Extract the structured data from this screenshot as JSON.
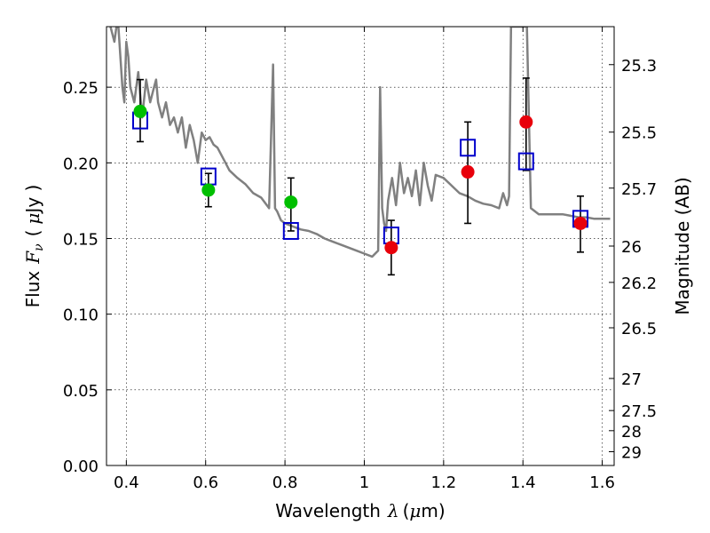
{
  "chart_data": {
    "type": "scatter",
    "xlabel": {
      "text": "Wavelength",
      "symbol": "λ",
      "unit_prefix": "(",
      "unit_mu": "μ",
      "unit_rest": "m)"
    },
    "ylabel": {
      "text": "Flux",
      "symbol": "F",
      "subscript": "ν",
      "unit_prefix": "(",
      "unit_mu": "μ",
      "unit_rest": "Jy )"
    },
    "y2label": "Magnitude (AB)",
    "xlim": [
      0.35,
      1.63
    ],
    "ylim": [
      0.0,
      0.29
    ],
    "x_ticks": [
      0.4,
      0.6,
      0.8,
      1.0,
      1.2,
      1.4,
      1.6
    ],
    "x_tick_labels": [
      "0.4",
      "0.6",
      "0.8",
      "1",
      "1.2",
      "1.4",
      "1.6"
    ],
    "y_ticks": [
      0.0,
      0.05,
      0.1,
      0.15,
      0.2,
      0.25
    ],
    "y_tick_labels": [
      "0.00",
      "0.05",
      "0.10",
      "0.15",
      "0.20",
      "0.25"
    ],
    "magnitude_ticks": [
      {
        "flux": 0.2649,
        "label": "25.3"
      },
      {
        "flux": 0.2203,
        "label": "25.5"
      },
      {
        "flux": 0.1833,
        "label": "25.7"
      },
      {
        "flux": 0.145,
        "label": "26"
      },
      {
        "flux": 0.121,
        "label": "26.2"
      },
      {
        "flux": 0.091,
        "label": "26.5"
      },
      {
        "flux": 0.0575,
        "label": "27"
      },
      {
        "flux": 0.0363,
        "label": "27.5"
      },
      {
        "flux": 0.023,
        "label": "28"
      },
      {
        "flux": 0.0091,
        "label": "29"
      }
    ],
    "grid": true,
    "colors": {
      "spectrum": "#808080",
      "green": "#00bf00",
      "red": "#e8000b",
      "model": "#0000cc",
      "errorbar": "#000000"
    },
    "series": [
      {
        "style": "line",
        "color": "#808080",
        "x": [
          0.36,
          0.37,
          0.375,
          0.38,
          0.39,
          0.395,
          0.4,
          0.405,
          0.41,
          0.42,
          0.43,
          0.44,
          0.45,
          0.46,
          0.47,
          0.475,
          0.48,
          0.49,
          0.5,
          0.51,
          0.52,
          0.53,
          0.54,
          0.55,
          0.56,
          0.57,
          0.58,
          0.59,
          0.6,
          0.61,
          0.62,
          0.63,
          0.64,
          0.65,
          0.66,
          0.68,
          0.7,
          0.72,
          0.74,
          0.76,
          0.77,
          0.775,
          0.78,
          0.785,
          0.79,
          0.8,
          0.82,
          0.84,
          0.86,
          0.88,
          0.9,
          0.92,
          0.94,
          0.96,
          0.98,
          1.0,
          1.02,
          1.035,
          1.04,
          1.045,
          1.05,
          1.055,
          1.06,
          1.07,
          1.08,
          1.09,
          1.1,
          1.11,
          1.12,
          1.13,
          1.14,
          1.15,
          1.16,
          1.17,
          1.18,
          1.2,
          1.22,
          1.24,
          1.26,
          1.28,
          1.3,
          1.32,
          1.34,
          1.35,
          1.36,
          1.365,
          1.37,
          1.38,
          1.385,
          1.39,
          1.4,
          1.41,
          1.42,
          1.43,
          1.44,
          1.46,
          1.48,
          1.5,
          1.52,
          1.54,
          1.56,
          1.58,
          1.6,
          1.62
        ],
        "y": [
          0.29,
          0.28,
          0.29,
          0.29,
          0.25,
          0.24,
          0.28,
          0.27,
          0.25,
          0.24,
          0.26,
          0.23,
          0.255,
          0.24,
          0.25,
          0.255,
          0.24,
          0.23,
          0.24,
          0.225,
          0.23,
          0.22,
          0.23,
          0.21,
          0.225,
          0.215,
          0.2,
          0.22,
          0.215,
          0.217,
          0.212,
          0.21,
          0.205,
          0.2,
          0.195,
          0.19,
          0.186,
          0.18,
          0.177,
          0.17,
          0.265,
          0.17,
          0.168,
          0.165,
          0.162,
          0.16,
          0.158,
          0.156,
          0.155,
          0.153,
          0.15,
          0.148,
          0.146,
          0.144,
          0.142,
          0.14,
          0.138,
          0.142,
          0.25,
          0.17,
          0.16,
          0.155,
          0.175,
          0.19,
          0.172,
          0.2,
          0.18,
          0.19,
          0.178,
          0.195,
          0.172,
          0.2,
          0.185,
          0.175,
          0.192,
          0.19,
          0.185,
          0.18,
          0.178,
          0.175,
          0.173,
          0.172,
          0.17,
          0.18,
          0.172,
          0.178,
          0.29,
          0.29,
          0.29,
          0.29,
          0.29,
          0.29,
          0.17,
          0.168,
          0.166,
          0.166,
          0.166,
          0.166,
          0.165,
          0.164,
          0.164,
          0.163,
          0.163,
          0.163
        ]
      },
      {
        "style": "circle",
        "color": "#00bf00",
        "x": [
          0.435,
          0.607,
          0.815
        ],
        "y": [
          0.234,
          0.182,
          0.174
        ]
      },
      {
        "style": "circle",
        "color": "#e8000b",
        "x": [
          1.068,
          1.261,
          1.408,
          1.545
        ],
        "y": [
          0.144,
          0.194,
          0.227,
          0.16
        ],
        "yerr_low": [
          0.126,
          0.16,
          0.195,
          0.141
        ],
        "yerr_high": [
          0.162,
          0.227,
          0.256,
          0.178
        ]
      },
      {
        "style": "open-square",
        "color": "#0000cc",
        "x": [
          0.435,
          0.607,
          0.815,
          1.068,
          1.261,
          1.408,
          1.545
        ],
        "y": [
          0.228,
          0.191,
          0.155,
          0.152,
          0.21,
          0.201,
          0.163
        ]
      },
      {
        "style": "errorbar",
        "color": "#000000",
        "x": [
          0.435,
          0.607,
          0.815
        ],
        "yerr_low": [
          0.214,
          0.171,
          0.155
        ],
        "yerr_high": [
          0.255,
          0.193,
          0.19
        ]
      }
    ]
  }
}
